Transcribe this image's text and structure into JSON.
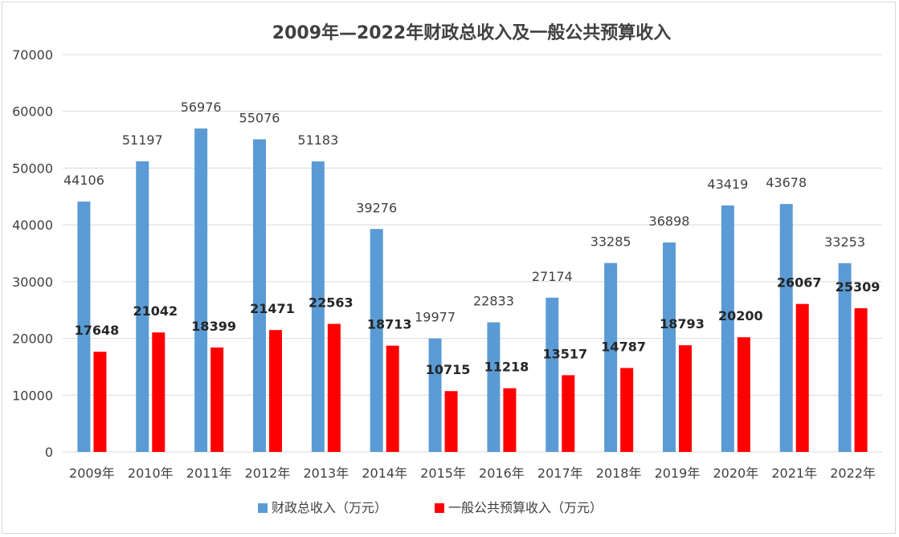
{
  "chart_data": {
    "type": "bar",
    "title": "2009年—2022年财政总收入及一般公共预算收入",
    "categories": [
      "2009年",
      "2010年",
      "2011年",
      "2012年",
      "2013年",
      "2014年",
      "2015年",
      "2016年",
      "2017年",
      "2018年",
      "2019年",
      "2020年",
      "2021年",
      "2022年"
    ],
    "series": [
      {
        "name": "财政总收入（万元）",
        "color": "#5b9bd5",
        "values": [
          44106,
          51197,
          56976,
          55076,
          51183,
          39276,
          19977,
          22833,
          27174,
          33285,
          36898,
          43419,
          43678,
          33253
        ]
      },
      {
        "name": "一般公共预算收入（万元）",
        "color": "#ff0000",
        "values": [
          17648,
          21042,
          18399,
          21471,
          22563,
          18713,
          10715,
          11218,
          13517,
          14787,
          18793,
          20200,
          26067,
          25309
        ]
      }
    ],
    "ylim": [
      0,
      70000
    ],
    "yticks": [
      0,
      10000,
      20000,
      30000,
      40000,
      50000,
      60000,
      70000
    ],
    "grid": true,
    "legend_position": "bottom"
  }
}
